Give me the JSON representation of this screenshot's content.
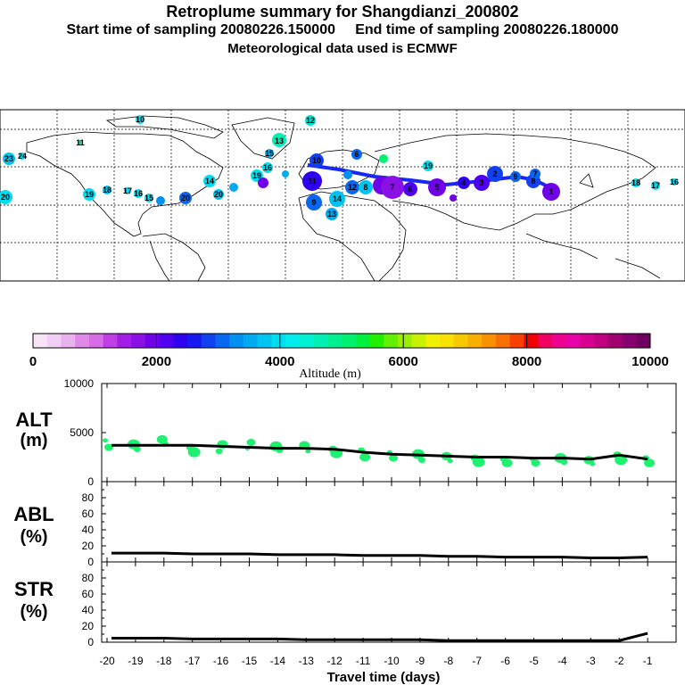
{
  "header": {
    "title": "Retroplume summary for Shangdianzi_200802",
    "line2": "Start time of sampling 20080226.150000     End time of sampling 20080226.180000",
    "line3": "Meteorological data used is ECMWF"
  },
  "colorbar": {
    "label": "Altitude (m)",
    "ticks": [
      "0",
      "2000",
      "4000",
      "6000",
      "8000",
      "10000"
    ],
    "colors": [
      "#f6e4f6",
      "#f0cdf2",
      "#e8b2ee",
      "#e08ae8",
      "#d66ce6",
      "#c13ee6",
      "#a21ee6",
      "#8a10e6",
      "#7000e8",
      "#5000f0",
      "#3000f0",
      "#1818f0",
      "#1040f0",
      "#0866f0",
      "#0090f0",
      "#00aaf0",
      "#00c4f0",
      "#00dcf0",
      "#00ecec",
      "#00f0d2",
      "#00f0b4",
      "#00f090",
      "#00f070",
      "#00f040",
      "#20f000",
      "#60f000",
      "#98f000",
      "#c8f000",
      "#f0f000",
      "#f8e000",
      "#f8c800",
      "#f8b000",
      "#f89000",
      "#f87000",
      "#f84000",
      "#f00000",
      "#f00060",
      "#f00090",
      "#e800a8",
      "#d80090",
      "#c00080",
      "#a00070",
      "#880070",
      "#700060"
    ]
  },
  "map": {
    "labels": [
      "10",
      "12",
      "13",
      "11",
      "24",
      "23",
      "20",
      "19",
      "18",
      "17",
      "16",
      "15",
      "14",
      "20",
      "19",
      "16",
      "15",
      "14",
      "13",
      "12",
      "11",
      "10",
      "9",
      "8",
      "7",
      "6",
      "5",
      "4",
      "3",
      "2",
      "1",
      "17",
      "16",
      "18",
      "20",
      "19",
      "7",
      "6",
      "9",
      "8"
    ]
  },
  "chart_data": [
    {
      "type": "line",
      "title": "ALT",
      "ylabel": "(m)",
      "ylim": [
        0,
        10000
      ],
      "yticks": [
        "10000",
        "5000",
        "0"
      ],
      "x": [
        -20,
        -19,
        -18,
        -17,
        -16,
        -15,
        -14,
        -13,
        -12,
        -11,
        -10,
        -9,
        -8,
        -7,
        -6,
        -5,
        -4,
        -3,
        -2,
        -1
      ],
      "series": [
        {
          "name": "median altitude",
          "values": [
            3700,
            3700,
            3700,
            3700,
            3600,
            3500,
            3400,
            3400,
            3300,
            3000,
            2800,
            2700,
            2600,
            2500,
            2500,
            2400,
            2400,
            2300,
            2700,
            2300
          ]
        }
      ],
      "scatter_series": [
        {
          "name": "particle clusters",
          "values": [
            4200,
            3500,
            3800,
            3300,
            4300,
            3900,
            3500,
            3000,
            3100,
            3800,
            3400,
            4000,
            3600,
            3200,
            3700,
            3100,
            3300,
            2900,
            3200,
            2500,
            3000,
            2400,
            2800,
            2200,
            2600,
            2100,
            2400,
            2000,
            2300,
            1900,
            2300,
            1900,
            2400,
            2000,
            2200,
            1800,
            2700,
            2200,
            2400,
            1900
          ]
        }
      ],
      "xlabel": ""
    },
    {
      "type": "line",
      "title": "ABL",
      "ylabel": "(%)",
      "ylim": [
        0,
        100
      ],
      "yticks": [
        "80",
        "60",
        "40",
        "20",
        "0"
      ],
      "x": [
        -20,
        -19,
        -18,
        -17,
        -16,
        -15,
        -14,
        -13,
        -12,
        -11,
        -10,
        -9,
        -8,
        -7,
        -6,
        -5,
        -4,
        -3,
        -2,
        -1
      ],
      "series": [
        {
          "name": "fraction in ABL",
          "values": [
            11,
            11,
            11,
            10,
            10,
            10,
            9,
            9,
            9,
            8,
            8,
            8,
            7,
            7,
            6,
            6,
            6,
            5,
            5,
            6
          ]
        }
      ]
    },
    {
      "type": "line",
      "title": "STR",
      "ylabel": "(%)",
      "ylim": [
        0,
        100
      ],
      "yticks": [
        "80",
        "60",
        "40",
        "20",
        "0"
      ],
      "x": [
        -20,
        -19,
        -18,
        -17,
        -16,
        -15,
        -14,
        -13,
        -12,
        -11,
        -10,
        -9,
        -8,
        -7,
        -6,
        -5,
        -4,
        -3,
        -2,
        -1
      ],
      "series": [
        {
          "name": "fraction in stratosphere",
          "values": [
            5,
            5,
            5,
            4,
            4,
            4,
            4,
            3,
            3,
            3,
            3,
            3,
            2,
            2,
            2,
            2,
            2,
            2,
            2,
            11
          ]
        }
      ],
      "xlabel": "Travel time (days)",
      "xticks": [
        "-20",
        "-19",
        "-18",
        "-17",
        "-16",
        "-15",
        "-14",
        "-13",
        "-12",
        "-11",
        "-10",
        "-9",
        "-8",
        "-7",
        "-6",
        "-5",
        "-4",
        "-3",
        "-2",
        "-1"
      ]
    }
  ]
}
